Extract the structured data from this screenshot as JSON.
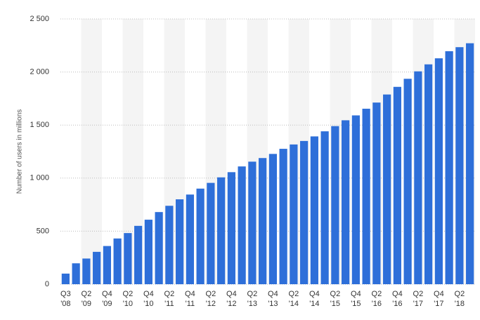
{
  "chart_data": {
    "type": "bar",
    "y_label": "Number of users in millions",
    "categories": [
      [
        "Q3",
        "'08"
      ],
      null,
      [
        "Q2",
        "'09"
      ],
      null,
      [
        "Q4",
        "'09"
      ],
      null,
      [
        "Q2",
        "'10"
      ],
      null,
      [
        "Q4",
        "'10"
      ],
      null,
      [
        "Q2",
        "'11"
      ],
      null,
      [
        "Q4",
        "'11"
      ],
      null,
      [
        "Q2",
        "'12"
      ],
      null,
      [
        "Q4",
        "'12"
      ],
      null,
      [
        "Q2",
        "'13"
      ],
      null,
      [
        "Q4",
        "'13"
      ],
      null,
      [
        "Q2",
        "'14"
      ],
      null,
      [
        "Q4",
        "'14"
      ],
      null,
      [
        "Q2",
        "'15"
      ],
      null,
      [
        "Q4",
        "'15"
      ],
      null,
      [
        "Q2",
        "'16"
      ],
      null,
      [
        "Q4",
        "'16"
      ],
      null,
      [
        "Q2",
        "'17"
      ],
      null,
      [
        "Q4",
        "'17"
      ],
      null,
      [
        "Q2",
        "'18"
      ],
      null
    ],
    "values": [
      100,
      197,
      242,
      305,
      360,
      431,
      482,
      550,
      608,
      680,
      739,
      800,
      845,
      901,
      955,
      1007,
      1056,
      1110,
      1155,
      1189,
      1228,
      1276,
      1317,
      1350,
      1393,
      1441,
      1490,
      1545,
      1591,
      1654,
      1712,
      1788,
      1860,
      1936,
      2006,
      2072,
      2129,
      2196,
      2234,
      2271
    ],
    "color": "#2e6fd9",
    "ylim": [
      0,
      2500
    ],
    "yticks": [
      0,
      500,
      {
        "value": 1000,
        "label": "1 000"
      },
      {
        "value": 1500,
        "label": "1 500"
      },
      {
        "value": 2000,
        "label": "2 000"
      },
      {
        "value": 2500,
        "label": "2 500"
      }
    ],
    "grid": true
  }
}
